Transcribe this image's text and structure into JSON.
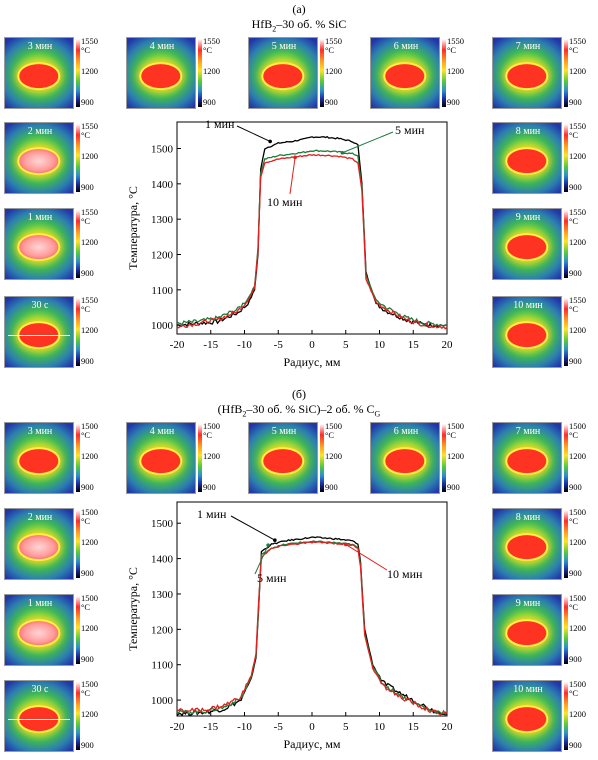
{
  "panel_a": {
    "label": "(а)",
    "title_parts": [
      "HfB",
      "2",
      "–30 об. % SiC"
    ],
    "colorbar": {
      "top": "1550",
      "unit": "°C",
      "mid": "1200",
      "bottom": "900"
    },
    "thumbnails": [
      "30 с",
      "1 мин",
      "2 мин",
      "3 мин",
      "4 мин",
      "5 мин",
      "6 мин",
      "7 мин",
      "8 мин",
      "9 мин",
      "10 мин"
    ]
  },
  "panel_b": {
    "label": "(б)",
    "title_parts": [
      "(HfB",
      "2",
      "–30 об. % SiC)–2 об. % C",
      "G"
    ],
    "colorbar": {
      "top": "1500",
      "unit": "°C",
      "mid": "1200",
      "bottom": "900"
    },
    "thumbnails": [
      "30 с",
      "1 мин",
      "2 мин",
      "3 мин",
      "4 мин",
      "5 мин",
      "6 мин",
      "7 мин",
      "8 мин",
      "9 мин",
      "10 мин"
    ]
  },
  "chart_data": [
    {
      "type": "line",
      "xlabel": "Радиус, мм",
      "ylabel": "Температура, °C",
      "xlim": [
        -20,
        20
      ],
      "ylim": [
        975,
        1575
      ],
      "xticks": [
        -20,
        -15,
        -10,
        -5,
        0,
        5,
        10,
        15,
        20
      ],
      "yticks": [
        1000,
        1100,
        1200,
        1300,
        1400,
        1500
      ],
      "series": [
        {
          "name": "1 мин",
          "color": "#000000",
          "x": [
            -20,
            -17,
            -14,
            -11,
            -9.5,
            -8.5,
            -8,
            -7.6,
            -7,
            -5,
            -3,
            -1,
            0,
            2,
            4,
            6,
            6.8,
            7.4,
            8,
            9.5,
            11,
            14,
            17,
            20
          ],
          "y": [
            1000,
            1005,
            1010,
            1035,
            1060,
            1100,
            1200,
            1440,
            1500,
            1515,
            1520,
            1527,
            1533,
            1532,
            1528,
            1520,
            1510,
            1400,
            1150,
            1060,
            1040,
            1015,
            1000,
            1000
          ]
        },
        {
          "name": "5 мин",
          "color": "#1f7a3c",
          "x": [
            -20,
            -17,
            -14,
            -11,
            -9.5,
            -8.5,
            -8,
            -7.6,
            -7,
            -5,
            -3,
            -1,
            0,
            2,
            4,
            6,
            6.8,
            7.4,
            8,
            9.5,
            11,
            14,
            17,
            20
          ],
          "y": [
            1005,
            1010,
            1020,
            1045,
            1075,
            1110,
            1220,
            1430,
            1470,
            1480,
            1485,
            1490,
            1494,
            1493,
            1490,
            1485,
            1480,
            1390,
            1140,
            1070,
            1050,
            1020,
            1005,
            1000
          ]
        },
        {
          "name": "10 мин",
          "color": "#e0211d",
          "x": [
            -20,
            -17,
            -14,
            -11,
            -9.5,
            -8.5,
            -8,
            -7.6,
            -7,
            -5,
            -3,
            -1,
            0,
            2,
            4,
            6,
            6.8,
            7.4,
            8,
            9.5,
            11,
            14,
            17,
            20
          ],
          "y": [
            995,
            1005,
            1015,
            1040,
            1070,
            1105,
            1210,
            1420,
            1460,
            1470,
            1475,
            1480,
            1482,
            1481,
            1478,
            1470,
            1460,
            1380,
            1130,
            1065,
            1045,
            1015,
            1000,
            995
          ]
        }
      ],
      "annotations": [
        "1 мин",
        "5 мин",
        "10 мин"
      ]
    },
    {
      "type": "line",
      "xlabel": "Радиус, мм",
      "ylabel": "Температура, °C",
      "xlim": [
        -20,
        20
      ],
      "ylim": [
        955,
        1560
      ],
      "xticks": [
        -20,
        -15,
        -10,
        -5,
        0,
        5,
        10,
        15,
        20
      ],
      "yticks": [
        1000,
        1100,
        1200,
        1300,
        1400,
        1500
      ],
      "series": [
        {
          "name": "1 мин",
          "color": "#000000",
          "x": [
            -20,
            -16,
            -13,
            -10.5,
            -9,
            -8.3,
            -7.9,
            -7.5,
            -6,
            -4,
            -2,
            0,
            2,
            4,
            6,
            6.8,
            7.2,
            7.8,
            9,
            10.5,
            13,
            16,
            18,
            20
          ],
          "y": [
            962,
            965,
            975,
            1000,
            1060,
            1120,
            1260,
            1420,
            1440,
            1450,
            1455,
            1460,
            1458,
            1455,
            1450,
            1440,
            1390,
            1200,
            1100,
            1050,
            1020,
            990,
            970,
            962
          ]
        },
        {
          "name": "5 мин",
          "color": "#1f7a3c",
          "x": [
            -20,
            -16,
            -13,
            -10.5,
            -9,
            -8.3,
            -7.9,
            -7.5,
            -6,
            -4,
            -2,
            0,
            2,
            4,
            6,
            6.8,
            7.2,
            7.8,
            9,
            10.5,
            13,
            16,
            18,
            20
          ],
          "y": [
            965,
            968,
            980,
            1005,
            1065,
            1125,
            1270,
            1410,
            1430,
            1440,
            1445,
            1448,
            1447,
            1444,
            1440,
            1430,
            1380,
            1190,
            1095,
            1045,
            1015,
            985,
            968,
            965
          ]
        },
        {
          "name": "10 мин",
          "color": "#e0211d",
          "x": [
            -20,
            -16,
            -13,
            -10.5,
            -9,
            -8.3,
            -7.9,
            -7.5,
            -6,
            -4,
            -2,
            0,
            2,
            4,
            6,
            6.8,
            7.2,
            7.8,
            9,
            10.5,
            13,
            16,
            18,
            20
          ],
          "y": [
            970,
            972,
            985,
            1010,
            1070,
            1130,
            1280,
            1405,
            1428,
            1438,
            1442,
            1446,
            1445,
            1442,
            1438,
            1428,
            1375,
            1185,
            1090,
            1040,
            1010,
            982,
            966,
            962
          ]
        }
      ],
      "annotations": [
        "1 мин",
        "5 мин",
        "10 мин"
      ]
    }
  ]
}
